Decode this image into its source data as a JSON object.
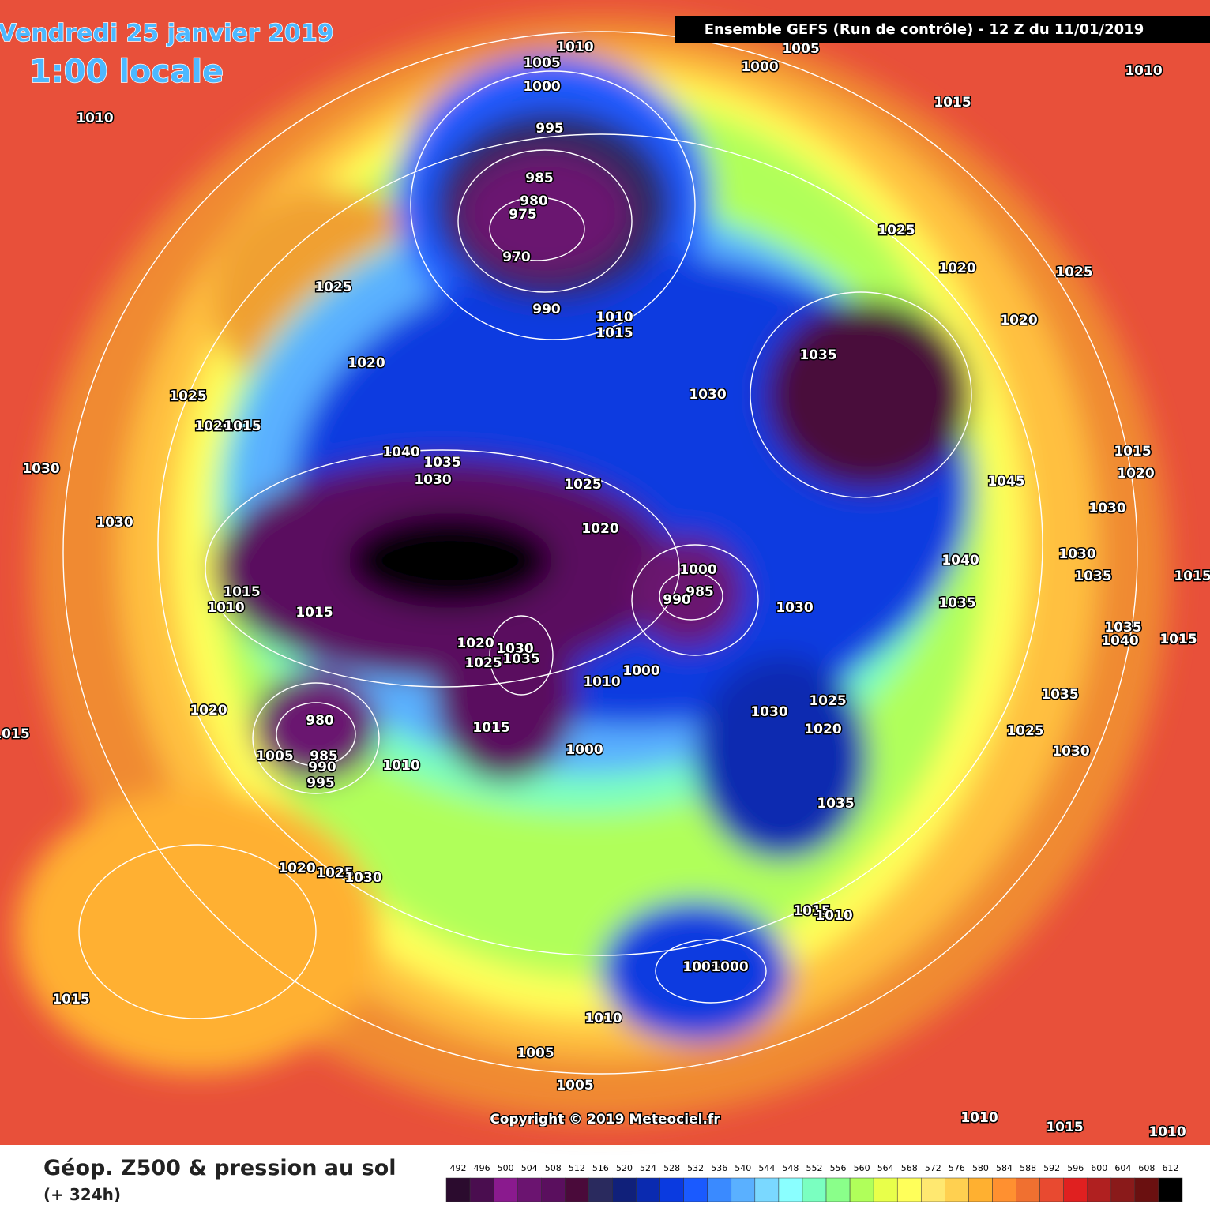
{
  "header": {
    "date": "Vendredi 25 janvier 2019",
    "time": "1:00 locale",
    "run": "Ensemble GEFS  (Run de contrôle)  -  12 Z du 11/01/2019"
  },
  "isobar_labels": [
    "1010",
    "1005",
    "1000",
    "995",
    "985",
    "980",
    "975",
    "970",
    "990",
    "1010",
    "1015",
    "1005",
    "1000",
    "1010",
    "1015",
    "1010",
    "1025",
    "1020",
    "1025",
    "1020",
    "1025",
    "1020",
    "1035",
    "1030",
    "1025",
    "1020",
    "1015",
    "1030",
    "1040",
    "1035",
    "1030",
    "1025",
    "1045",
    "1015",
    "1020",
    "1030",
    "1030",
    "1020",
    "1040",
    "1030",
    "1035",
    "1000",
    "985",
    "990",
    "1015",
    "1010",
    "1015",
    "1030",
    "1035",
    "1015",
    "1020",
    "1030",
    "1025",
    "1035",
    "1010",
    "1000",
    "1035",
    "1040",
    "1015",
    "1035",
    "1025",
    "1030",
    "1020",
    "1020",
    "980",
    "1005",
    "985",
    "990",
    "995",
    "1015",
    "1000",
    "1010",
    "1025",
    "1030",
    "1035",
    "1020",
    "1025",
    "1030",
    "1015",
    "1010",
    "1005",
    "1000",
    "1015",
    "1010",
    "1005",
    "1005",
    "1010",
    "1015",
    "1010",
    "1015"
  ],
  "copyright": "Copyright © 2019 Meteociel.fr",
  "footer": {
    "title": "Géop. Z500 & pression au sol",
    "subtitle": "(+ 324h)"
  },
  "colorbar": {
    "labels": [
      492,
      496,
      500,
      504,
      508,
      512,
      516,
      520,
      524,
      528,
      532,
      536,
      540,
      544,
      548,
      552,
      556,
      560,
      564,
      568,
      572,
      576,
      580,
      584,
      588,
      592,
      596,
      600,
      604,
      608,
      612
    ],
    "colors": [
      "#2b0b2e",
      "#4a0d4f",
      "#8a1a8e",
      "#6b1470",
      "#5a0f5e",
      "#4a0a3a",
      "#2a2a5e",
      "#10207a",
      "#0a2ab0",
      "#0a3ae0",
      "#1a5aff",
      "#3a8aff",
      "#5ab0ff",
      "#7ad8ff",
      "#8affff",
      "#7affc0",
      "#8aff8a",
      "#b0ff5a",
      "#e8ff4a",
      "#ffff5a",
      "#ffe870",
      "#ffd050",
      "#ffb030",
      "#ff9030",
      "#f07030",
      "#e84a30",
      "#e02020",
      "#b02020",
      "#8a1a1a",
      "#6a1010",
      "#000000"
    ]
  }
}
